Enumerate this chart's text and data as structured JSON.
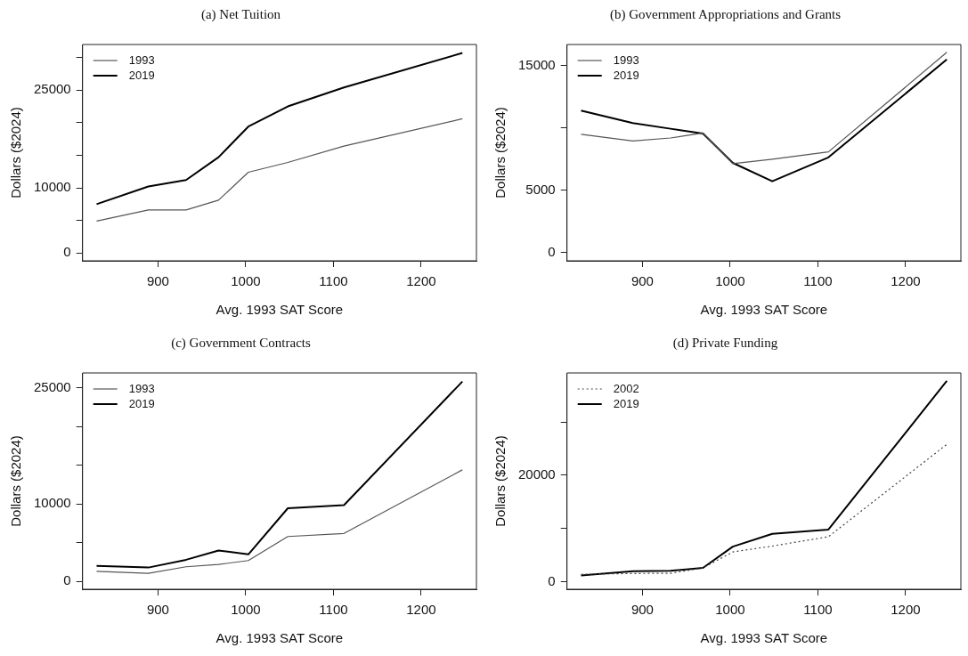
{
  "chart_data": [
    {
      "type": "line",
      "title": "(a) Net Tuition",
      "xlabel": "Avg. 1993 SAT Score",
      "ylabel": "Dollars ($2024)",
      "x": [
        830,
        889,
        932,
        969,
        1003,
        1048,
        1112,
        1247
      ],
      "xlim": [
        814,
        1263
      ],
      "xticks": [
        900,
        1000,
        1100,
        1200
      ],
      "ylim": [
        -1200,
        32000
      ],
      "yticks": [
        0,
        {
          "value": 5000,
          "label": null
        },
        10000,
        {
          "value": 15000,
          "label": null
        },
        {
          "value": 20000,
          "label": null
        },
        25000,
        {
          "value": 30000,
          "label": null
        }
      ],
      "legend": "top left",
      "series": [
        {
          "name": "1993",
          "color": "#555555",
          "values": [
            4900,
            6600,
            6600,
            8100,
            12400,
            13900,
            16400,
            20600
          ]
        },
        {
          "name": "2019",
          "color": "#000000",
          "values": [
            7500,
            10200,
            11200,
            14700,
            19400,
            22500,
            25400,
            30700
          ]
        }
      ]
    },
    {
      "type": "line",
      "title": "(b) Government Appropriations and Grants",
      "xlabel": "Avg. 1993 SAT Score",
      "ylabel": "Dollars ($2024)",
      "x": [
        830,
        889,
        932,
        969,
        1003,
        1048,
        1112,
        1247
      ],
      "xlim": [
        814,
        1263
      ],
      "xticks": [
        900,
        1000,
        1100,
        1200
      ],
      "ylim": [
        -660,
        16700
      ],
      "yticks": [
        0,
        5000,
        {
          "value": 10000,
          "label": null
        },
        15000
      ],
      "legend": "top left",
      "series": [
        {
          "name": "1993",
          "color": "#555555",
          "values": [
            9500,
            8960,
            9200,
            9600,
            7140,
            7500,
            8080,
            16070
          ]
        },
        {
          "name": "2019",
          "color": "#000000",
          "values": [
            11400,
            10400,
            9940,
            9560,
            7200,
            5720,
            7640,
            15500
          ]
        }
      ]
    },
    {
      "type": "line",
      "title": "(c) Government Contracts",
      "xlabel": "Avg. 1993 SAT Score",
      "ylabel": "Dollars ($2024)",
      "x": [
        830,
        889,
        932,
        969,
        1003,
        1048,
        1112,
        1247
      ],
      "xlim": [
        814,
        1263
      ],
      "xticks": [
        900,
        1000,
        1100,
        1200
      ],
      "ylim": [
        -1000,
        26900
      ],
      "yticks": [
        0,
        {
          "value": 5000,
          "label": null
        },
        10000,
        {
          "value": 15000,
          "label": null
        },
        {
          "value": 20000,
          "label": null
        },
        25000
      ],
      "legend": "top left",
      "series": [
        {
          "name": "1993",
          "color": "#555555",
          "values": [
            1300,
            1050,
            1900,
            2200,
            2700,
            5800,
            6200,
            14400
          ]
        },
        {
          "name": "2019",
          "color": "#000000",
          "values": [
            2000,
            1800,
            2800,
            4000,
            3500,
            9450,
            9850,
            25800
          ]
        }
      ]
    },
    {
      "type": "line",
      "title": "(d) Private Funding",
      "xlabel": "Avg. 1993 SAT Score",
      "ylabel": "Dollars ($2024)",
      "x": [
        830,
        889,
        932,
        969,
        1003,
        1048,
        1112,
        1247
      ],
      "xlim": [
        814,
        1263
      ],
      "xticks": [
        900,
        1000,
        1100,
        1200
      ],
      "ylim": [
        -1400,
        39200
      ],
      "yticks": [
        0,
        {
          "value": 10000,
          "label": null
        },
        20000,
        {
          "value": 30000,
          "label": null
        }
      ],
      "legend": "top left",
      "series": [
        {
          "name": "2002",
          "color": "#444444",
          "line_style": "dotted",
          "values": [
            1400,
            1550,
            1600,
            2600,
            5600,
            6700,
            8460,
            25800
          ]
        },
        {
          "name": "2019",
          "color": "#000000",
          "values": [
            1200,
            2000,
            2060,
            2600,
            6600,
            9000,
            9800,
            37700
          ]
        }
      ]
    }
  ]
}
